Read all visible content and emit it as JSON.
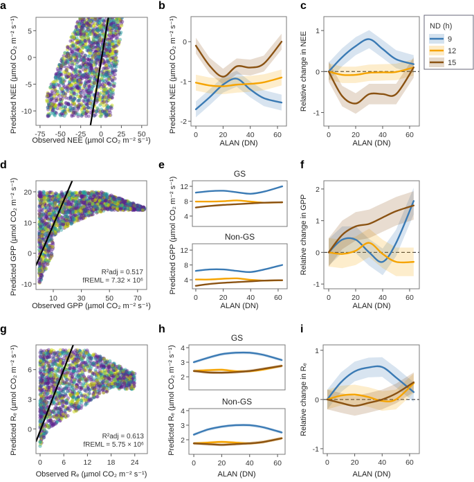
{
  "legend": {
    "title": "ND (h)",
    "entries": [
      {
        "label": "9",
        "color": "#3a7ab4"
      },
      {
        "label": "12",
        "color": "#f5a300"
      },
      {
        "label": "15",
        "color": "#8a5212"
      }
    ]
  },
  "scatter_colors": [
    "#5b1f8e",
    "#1f9c9c",
    "#c8d400"
  ],
  "chart_data": [
    {
      "panel": "a",
      "type": "scatter",
      "xlabel": "Observed NEE (µmol CO₂ m⁻² s⁻¹)",
      "ylabel": "Predicted NEE (µmol CO₂ m⁻² s⁻¹)",
      "xlim": [
        -80,
        57
      ],
      "ylim": [
        -12.7,
        7.5
      ],
      "xticks": [
        -75,
        -50,
        -25,
        0,
        25,
        50
      ],
      "yticks": [
        -10,
        -5,
        0,
        5
      ],
      "fit_line": {
        "x": [
          -13,
          9
        ],
        "y": [
          -12.7,
          7.5
        ]
      },
      "annotation": []
    },
    {
      "panel": "b",
      "type": "line",
      "xlabel": "ALAN (DN)",
      "ylabel": "Predicted NEE (µmol CO₂ m⁻² s⁻¹)",
      "xlim": [
        -3.6,
        66.6
      ],
      "ylim": [
        -2.12,
        0.63
      ],
      "xticks": [
        0,
        20,
        40,
        60
      ],
      "yticks": [
        -2,
        -1,
        0
      ],
      "zero_line": false,
      "facets": [
        {
          "title": "",
          "ylim": [
            -2.12,
            0.63
          ],
          "yticks": [
            -2,
            -1,
            0
          ],
          "x": [
            0,
            10,
            20,
            30,
            40,
            50,
            63
          ],
          "series": [
            {
              "name": "9",
              "values": [
                -1.7,
                -1.4,
                -1.08,
                -0.93,
                -1.2,
                -1.42,
                -1.53
              ],
              "ci": 0.2
            },
            {
              "name": "12",
              "values": [
                -1.03,
                -1.1,
                -1.12,
                -1.08,
                -1.06,
                -1.02,
                -0.9
              ],
              "ci": 0.2
            },
            {
              "name": "15",
              "values": [
                -0.1,
                -0.6,
                -0.88,
                -0.62,
                -0.65,
                -0.55,
                0.0
              ],
              "ci": 0.2
            }
          ]
        }
      ]
    },
    {
      "panel": "c",
      "type": "line",
      "xlabel": "ALAN (DN)",
      "ylabel": "Relative change in NEE",
      "xlim": [
        -3.6,
        67.2
      ],
      "xticks": [
        0,
        20,
        40,
        60
      ],
      "zero_line": true,
      "facets": [
        {
          "title": "",
          "ylim": [
            -1.33,
            1.34
          ],
          "yticks": [
            -1,
            0,
            1
          ],
          "x": [
            0,
            10,
            20,
            30,
            40,
            50,
            63
          ],
          "series": [
            {
              "name": "9",
              "values": [
                0,
                0.35,
                0.62,
                0.79,
                0.55,
                0.3,
                0.18
              ],
              "ci": 0.22
            },
            {
              "name": "12",
              "values": [
                0,
                -0.08,
                -0.08,
                -0.03,
                -0.02,
                -0.01,
                0.1
              ],
              "ci": 0.2
            },
            {
              "name": "15",
              "values": [
                0,
                -0.6,
                -0.78,
                -0.55,
                -0.55,
                -0.55,
                0.1
              ],
              "ci": 0.25
            }
          ]
        }
      ]
    },
    {
      "panel": "d",
      "type": "scatter",
      "xlabel": "Observed GPP (µmol CO₂ m⁻² s⁻¹)",
      "ylabel": "Predicted GPP (µmol CO₂ m⁻² s⁻¹)",
      "xlim": [
        -2.3,
        76.5
      ],
      "ylim": [
        -11.8,
        23.6
      ],
      "xticks": [
        10,
        30,
        50,
        70
      ],
      "yticks": [
        -10,
        0,
        10,
        20
      ],
      "fit_line": {
        "x": [
          -2.3,
          23.5
        ],
        "y": [
          -4,
          23.6
        ]
      },
      "annotation": [
        "R²adj = 0.517",
        "fREML = 7.32 × 10⁶"
      ]
    },
    {
      "panel": "e",
      "type": "line",
      "xlabel": "ALAN (DN)",
      "ylabel": "Predicted GPP (µmol CO₂ m⁻² s⁻¹)",
      "xlim": [
        -2.5,
        66.6
      ],
      "xticks": [
        0,
        20,
        40,
        60
      ],
      "zero_line": false,
      "facets": [
        {
          "title": "GS",
          "ylim": [
            1.2,
            13.5
          ],
          "yticks": [
            4,
            8,
            12
          ],
          "x": [
            0,
            10,
            20,
            30,
            40,
            50,
            63
          ],
          "series": [
            {
              "name": "9",
              "values": [
                10.3,
                10.7,
                10.8,
                10.4,
                10.0,
                10.6,
                12.0
              ],
              "ci": 0.15
            },
            {
              "name": "12",
              "values": [
                7.9,
                7.9,
                8.0,
                8.2,
                7.9,
                7.6,
                7.7
              ],
              "ci": 0.15
            },
            {
              "name": "15",
              "values": [
                6.3,
                6.7,
                7.0,
                7.2,
                7.4,
                7.6,
                7.7
              ],
              "ci": 0.15
            }
          ]
        },
        {
          "title": "Non-GS",
          "ylim": [
            1.6,
            13.7
          ],
          "yticks": [
            4,
            8,
            12
          ],
          "x": [
            0,
            10,
            20,
            30,
            40,
            50,
            63
          ],
          "series": [
            {
              "name": "9",
              "values": [
                6.4,
                6.8,
                6.8,
                6.4,
                6.1,
                6.8,
                8.0
              ],
              "ci": 0.15
            },
            {
              "name": "12",
              "values": [
                4.1,
                4.1,
                4.3,
                4.4,
                4.0,
                3.8,
                3.9
              ],
              "ci": 0.15
            },
            {
              "name": "15",
              "values": [
                2.4,
                2.9,
                3.2,
                3.4,
                3.6,
                3.8,
                3.9
              ],
              "ci": 0.15
            }
          ]
        }
      ]
    },
    {
      "panel": "f",
      "type": "line",
      "xlabel": "ALAN (DN)",
      "ylabel": "Relative change in GPP",
      "xlim": [
        -3.6,
        67.2
      ],
      "xticks": [
        0,
        20,
        40,
        60
      ],
      "zero_line": true,
      "facets": [
        {
          "title": "",
          "ylim": [
            -1.15,
            2.26
          ],
          "yticks": [
            -1,
            0,
            1,
            2
          ],
          "x": [
            0,
            10,
            20,
            30,
            40,
            50,
            63
          ],
          "series": [
            {
              "name": "9",
              "values": [
                0,
                0.4,
                0.4,
                0.0,
                -0.3,
                0.3,
                1.62
              ],
              "ci": 0.42
            },
            {
              "name": "12",
              "values": [
                0,
                -0.05,
                0.05,
                0.3,
                -0.05,
                -0.3,
                -0.3
              ],
              "ci": 0.45
            },
            {
              "name": "15",
              "values": [
                0,
                0.55,
                0.82,
                0.9,
                1.1,
                1.3,
                1.48
              ],
              "ci": 0.45
            }
          ]
        }
      ]
    },
    {
      "panel": "g",
      "type": "scatter",
      "xlabel": "Observed Rₑ (µmol CO₂ m⁻² s⁻¹)",
      "ylabel": "Predicted Rₑ (µmol CO₂ m⁻² s⁻¹)",
      "xlim": [
        -1.05,
        27.2
      ],
      "ylim": [
        -2.5,
        8.5
      ],
      "xticks": [
        0,
        6,
        12,
        18,
        24
      ],
      "yticks": [
        0,
        3,
        6
      ],
      "fit_line": {
        "x": [
          -1.05,
          8.4
        ],
        "y": [
          -1.3,
          8.5
        ]
      },
      "annotation": [
        "R²adj = 0.613",
        "fREML = 5.75 × 10⁶"
      ]
    },
    {
      "panel": "h",
      "type": "line",
      "xlabel": "ALAN (DN)",
      "ylabel": "Predicted Rₑ (µmol CO₂ m⁻² s⁻¹)",
      "xlim": [
        -3.5,
        65.4
      ],
      "xticks": [
        0,
        20,
        40,
        60
      ],
      "zero_line": false,
      "facets": [
        {
          "title": "GS",
          "ylim": [
            1.1,
            4.19
          ],
          "yticks": [
            2,
            3,
            4
          ],
          "x": [
            0,
            10,
            20,
            30,
            40,
            50,
            63
          ],
          "series": [
            {
              "name": "9",
              "values": [
                3.0,
                3.3,
                3.55,
                3.65,
                3.65,
                3.5,
                3.15
              ],
              "ci": 0.1
            },
            {
              "name": "12",
              "values": [
                2.4,
                2.45,
                2.48,
                2.38,
                2.38,
                2.5,
                2.75
              ],
              "ci": 0.1
            },
            {
              "name": "15",
              "values": [
                2.4,
                2.3,
                2.28,
                2.32,
                2.4,
                2.55,
                2.75
              ],
              "ci": 0.1
            }
          ]
        },
        {
          "title": "Non-GS",
          "ylim": [
            1.0,
            4.14
          ],
          "yticks": [
            2,
            3,
            4
          ],
          "x": [
            0,
            10,
            20,
            30,
            40,
            50,
            63
          ],
          "series": [
            {
              "name": "9",
              "values": [
                2.35,
                2.7,
                2.9,
                3.0,
                3.0,
                2.85,
                2.5
              ],
              "ci": 0.1
            },
            {
              "name": "12",
              "values": [
                1.75,
                1.8,
                1.85,
                1.8,
                1.75,
                1.85,
                2.1
              ],
              "ci": 0.1
            },
            {
              "name": "15",
              "values": [
                1.75,
                1.7,
                1.65,
                1.7,
                1.75,
                1.85,
                2.1
              ],
              "ci": 0.1
            }
          ]
        }
      ]
    },
    {
      "panel": "i",
      "type": "line",
      "xlabel": "ALAN (DN)",
      "ylabel": "Relative change in Rₑ",
      "xlim": [
        -3,
        67.1
      ],
      "xticks": [
        0,
        20,
        40,
        60
      ],
      "zero_line": true,
      "facets": [
        {
          "title": "",
          "ylim": [
            -1.1,
            1.11
          ],
          "yticks": [
            -1,
            0,
            1
          ],
          "x": [
            0,
            10,
            20,
            30,
            40,
            50,
            63
          ],
          "series": [
            {
              "name": "9",
              "values": [
                0,
                0.35,
                0.57,
                0.65,
                0.66,
                0.45,
                0.15
              ],
              "ci": 0.2
            },
            {
              "name": "12",
              "values": [
                0,
                0.08,
                0.1,
                0.05,
                -0.03,
                0.0,
                0.33
              ],
              "ci": 0.2
            },
            {
              "name": "15",
              "values": [
                0,
                -0.07,
                -0.13,
                -0.07,
                0.0,
                0.12,
                0.35
              ],
              "ci": 0.2
            }
          ]
        }
      ]
    }
  ]
}
